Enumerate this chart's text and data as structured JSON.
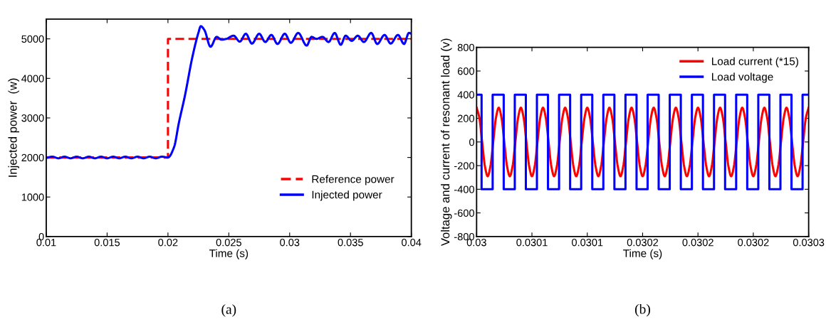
{
  "chart_data": [
    {
      "type": "line",
      "xlabel": "Time (s)",
      "ylabel": "Injected power  (w)",
      "annotations": [
        "(a)"
      ],
      "xlim": [
        0.01,
        0.04
      ],
      "ylim": [
        0,
        5500
      ],
      "xticks": [
        0.01,
        0.015,
        0.02,
        0.025,
        0.03,
        0.035,
        0.04
      ],
      "yticks": [
        0,
        1000,
        2000,
        3000,
        4000,
        5000
      ],
      "legend": "bottom right",
      "series": [
        {
          "name": "Reference power",
          "color": "#ff0000",
          "type": "step",
          "line_style": "dashed",
          "x": [
            0.01,
            0.02,
            0.04
          ],
          "values": [
            2000,
            5000,
            5000
          ]
        },
        {
          "name": "Injected power",
          "color": "#0000ff",
          "type": "line",
          "line_style": "solid",
          "x": [
            0.01,
            0.0105,
            0.011,
            0.0115,
            0.012,
            0.0125,
            0.013,
            0.0135,
            0.014,
            0.0145,
            0.015,
            0.0155,
            0.016,
            0.0165,
            0.017,
            0.0175,
            0.018,
            0.0185,
            0.019,
            0.0195,
            0.02,
            0.0205,
            0.0209,
            0.0214,
            0.022,
            0.0225,
            0.0227,
            0.023,
            0.0235,
            0.024,
            0.0244,
            0.0248,
            0.0254,
            0.0259,
            0.0264,
            0.0269,
            0.0275,
            0.028,
            0.0285,
            0.029,
            0.0296,
            0.0301,
            0.0307,
            0.0314,
            0.0318,
            0.0322,
            0.0327,
            0.0332,
            0.0337,
            0.0342,
            0.0346,
            0.0351,
            0.0356,
            0.0361,
            0.0367,
            0.0372,
            0.0378,
            0.0383,
            0.0389,
            0.0394,
            0.0398,
            0.04
          ],
          "values": [
            1990,
            2020,
            1980,
            2020,
            1980,
            2020,
            1980,
            2020,
            1980,
            2020,
            1980,
            2020,
            1980,
            2020,
            1980,
            2020,
            1980,
            2020,
            1980,
            2020,
            2000,
            2260,
            2880,
            3570,
            4530,
            5150,
            5320,
            5220,
            4800,
            5050,
            4980,
            5000,
            5080,
            4930,
            5130,
            4880,
            5130,
            4920,
            5100,
            4870,
            5130,
            4900,
            5150,
            4830,
            5050,
            5000,
            5050,
            4920,
            5150,
            4850,
            5080,
            4950,
            5080,
            4920,
            5150,
            4870,
            5100,
            4880,
            5100,
            4870,
            5150,
            5130
          ]
        }
      ]
    },
    {
      "type": "line",
      "xlabel": "Time (s)",
      "ylabel": "Voltage and current of resonant load (v)",
      "annotations": [
        "(b)"
      ],
      "xlim": [
        0.03,
        0.0303
      ],
      "ylim": [
        -800,
        800
      ],
      "xticks": [
        0.03,
        {
          "value": 0.03005,
          "label": "0.0301"
        },
        {
          "value": 0.0301,
          "label": "0.0301"
        },
        {
          "value": 0.03015,
          "label": "0.0302"
        },
        {
          "value": 0.0302,
          "label": "0.0302"
        },
        {
          "value": 0.03025,
          "label": "0.0302"
        },
        0.0303
      ],
      "yticks": [
        -800,
        -600,
        -400,
        -200,
        0,
        200,
        400,
        600,
        800
      ],
      "legend": "top right",
      "series": [
        {
          "name": "Load current (*15)",
          "color": "#ff0000",
          "type": "line",
          "line_style": "solid",
          "x": [
            0.03,
            0.0300025,
            0.030005,
            0.0300075,
            0.03001,
            0.0300125,
            0.030015,
            0.0300175,
            0.03002,
            0.0300225,
            0.030025,
            0.0300275,
            0.03003,
            0.0300325,
            0.030035,
            0.0300375,
            0.03004,
            0.0300425,
            0.030045,
            0.0300475,
            0.03005,
            0.0300525,
            0.030055,
            0.0300575,
            0.03006,
            0.0300625,
            0.030065,
            0.0300675,
            0.03007,
            0.0300725,
            0.030075,
            0.0300775,
            0.03008,
            0.0300825,
            0.030085,
            0.0300875,
            0.03009,
            0.0300925,
            0.030095,
            0.0300975,
            0.0301,
            0.0301025,
            0.030105,
            0.0301075,
            0.03011,
            0.0301125,
            0.030115,
            0.0301175,
            0.03012,
            0.0301225,
            0.030125,
            0.0301275,
            0.03013,
            0.0301325,
            0.030135,
            0.0301375,
            0.03014,
            0.0301425,
            0.030145,
            0.0301475,
            0.03015,
            0.0301525,
            0.030155,
            0.0301575,
            0.03016,
            0.0301625,
            0.030165,
            0.0301675,
            0.03017,
            0.0301725,
            0.030175,
            0.0301775,
            0.03018,
            0.0301825,
            0.030185,
            0.0301875,
            0.03019,
            0.0301925,
            0.030195,
            0.0301975,
            0.0302,
            0.0302025,
            0.030205,
            0.0302075,
            0.03021,
            0.0302125,
            0.030215,
            0.0302175,
            0.03022,
            0.0302225,
            0.030225,
            0.0302275,
            0.03023,
            0.0302325,
            0.030235,
            0.0302375,
            0.03024,
            0.0302425,
            0.030245,
            0.0302475,
            0.03025,
            0.0302525,
            0.030255,
            0.0302575,
            0.03026,
            0.0302625,
            0.030265,
            0.0302675,
            0.03027,
            0.0302725,
            0.030275,
            0.0302775,
            0.03028,
            0.0302825,
            0.030285,
            0.0302875,
            0.03029,
            0.0302925,
            0.030295,
            0.0302975,
            0.0303
          ],
          "values": [
            290,
            205,
            0,
            -205,
            -290,
            -205,
            0,
            205,
            290,
            205,
            0,
            -205,
            -290,
            -205,
            0,
            205,
            290,
            205,
            0,
            -205,
            -290,
            -205,
            0,
            205,
            290,
            205,
            0,
            -205,
            -290,
            -205,
            0,
            205,
            290,
            205,
            0,
            -205,
            -290,
            -205,
            0,
            205,
            290,
            205,
            0,
            -205,
            -290,
            -205,
            0,
            205,
            290,
            205,
            0,
            -205,
            -290,
            -205,
            0,
            205,
            290,
            205,
            0,
            -205,
            -290,
            -205,
            0,
            205,
            290,
            205,
            0,
            -205,
            -290,
            -205,
            0,
            205,
            290,
            205,
            0,
            -205,
            -290,
            -205,
            0,
            205,
            290,
            205,
            0,
            -205,
            -290,
            -205,
            0,
            205,
            290,
            205,
            0,
            -205,
            -290,
            -205,
            0,
            205,
            290,
            205,
            0,
            -205,
            -290,
            -205,
            0,
            205,
            290,
            205,
            0,
            -205,
            -290,
            -205,
            0,
            205,
            290,
            205,
            0,
            -205,
            -290,
            -205,
            0,
            205,
            290
          ]
        },
        {
          "name": "Load voltage",
          "color": "#0000ff",
          "type": "step",
          "line_style": "solid",
          "x": [
            0.03,
            0.0300045,
            0.0300145,
            0.0300245,
            0.0300345,
            0.0300445,
            0.0300545,
            0.0300645,
            0.0300745,
            0.0300845,
            0.0300945,
            0.0301045,
            0.0301145,
            0.0301245,
            0.0301345,
            0.0301445,
            0.0301545,
            0.0301645,
            0.0301745,
            0.0301845,
            0.0301945,
            0.0302045,
            0.0302145,
            0.0302245,
            0.0302345,
            0.0302445,
            0.0302545,
            0.0302645,
            0.0302745,
            0.0302845,
            0.0302945,
            0.0303
          ],
          "values": [
            400,
            -400,
            400,
            -400,
            400,
            -400,
            400,
            -400,
            400,
            -400,
            400,
            -400,
            400,
            -400,
            400,
            -400,
            400,
            -400,
            400,
            -400,
            400,
            -400,
            400,
            -400,
            400,
            -400,
            400,
            -400,
            400,
            -400,
            400,
            400
          ]
        }
      ]
    }
  ]
}
